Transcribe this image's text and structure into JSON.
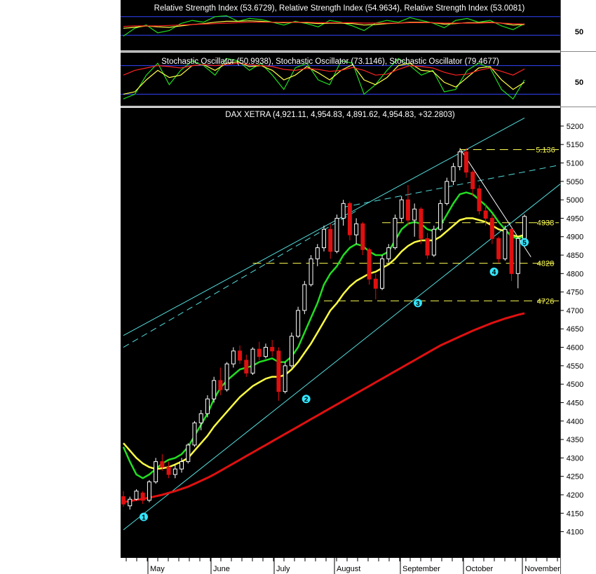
{
  "colors": {
    "background": "#000000",
    "candle_up": "#ffffff",
    "candle_down": "#e01010",
    "ma_fast": "#22dd22",
    "ma_mid": "#ffff44",
    "ma_slow": "#e01010",
    "trendline": "#55dddd",
    "level_line": "#ffff55",
    "marker": "#33e6ff",
    "guide_blue": "#3344ff",
    "guide_red": "#ff2222"
  },
  "rsi_panel": {
    "title": "Relative Strength Index (53.6729), Relative Strength Index (54.9634), Relative Strength Index (53.0081)",
    "axis_label": "50",
    "range": [
      0,
      100
    ],
    "guides": [
      70,
      30
    ],
    "series": [
      {
        "color": "#22dd22",
        "values": [
          28,
          45,
          52,
          35,
          40,
          55,
          62,
          58,
          70,
          72,
          60,
          66,
          64,
          58,
          52,
          60,
          55,
          48,
          62,
          58,
          50,
          40,
          56,
          62,
          58,
          68,
          62,
          56,
          46,
          62,
          66,
          58,
          62,
          50,
          42,
          55
        ]
      },
      {
        "color": "#ffff44",
        "values": [
          45,
          47,
          50,
          48,
          47,
          50,
          53,
          55,
          58,
          60,
          60,
          61,
          60,
          58,
          57,
          58,
          57,
          55,
          56,
          56,
          55,
          52,
          53,
          55,
          56,
          58,
          58,
          57,
          54,
          55,
          57,
          57,
          58,
          56,
          52,
          53
        ]
      },
      {
        "color": "#ff2222",
        "values": [
          49,
          50,
          50,
          50,
          51,
          52,
          53,
          54,
          55,
          56,
          57,
          58,
          58,
          58,
          58,
          58,
          58,
          57,
          57,
          57,
          57,
          56,
          56,
          56,
          56,
          57,
          57,
          57,
          56,
          56,
          56,
          56,
          57,
          56,
          55,
          54
        ]
      }
    ]
  },
  "stoch_panel": {
    "title": "Stochastic Oscillator (50.9938), Stochastic Oscillator (73.1146), Stochastic Oscillator (79.4677)",
    "axis_label": "50",
    "range": [
      0,
      100
    ],
    "guides": [
      80,
      20
    ],
    "series": [
      {
        "color": "#22dd22",
        "values": [
          10,
          20,
          60,
          85,
          40,
          70,
          90,
          80,
          60,
          95,
          90,
          70,
          85,
          60,
          30,
          75,
          85,
          50,
          40,
          90,
          85,
          20,
          40,
          70,
          95,
          80,
          60,
          70,
          25,
          30,
          70,
          85,
          75,
          30,
          10,
          50
        ]
      },
      {
        "color": "#ffff44",
        "values": [
          20,
          25,
          50,
          70,
          55,
          60,
          80,
          82,
          70,
          85,
          88,
          78,
          80,
          70,
          50,
          60,
          78,
          65,
          50,
          70,
          82,
          50,
          40,
          55,
          80,
          85,
          70,
          68,
          45,
          35,
          55,
          75,
          78,
          50,
          30,
          45
        ]
      },
      {
        "color": "#ff2222",
        "values": [
          60,
          70,
          75,
          80,
          78,
          75,
          80,
          82,
          80,
          82,
          85,
          82,
          80,
          78,
          72,
          70,
          74,
          72,
          68,
          70,
          76,
          70,
          60,
          62,
          72,
          80,
          78,
          75,
          66,
          60,
          62,
          70,
          75,
          68,
          60,
          73
        ]
      }
    ]
  },
  "chart_data": {
    "type": "candlestick",
    "title": "DAX XETRA (4,921.11, 4,954.83, 4,891.62, 4,954.83, +32.2803)",
    "x_labels": [
      "May",
      "June",
      "July",
      "August",
      "September",
      "October",
      "November"
    ],
    "y_ticks": [
      4100,
      4150,
      4200,
      4250,
      4300,
      4350,
      4400,
      4450,
      4500,
      4550,
      4600,
      4650,
      4700,
      4750,
      4800,
      4850,
      4900,
      4950,
      5000,
      5050,
      5100,
      5150,
      5200
    ],
    "ylim": [
      4065,
      5215
    ],
    "candles": [
      {
        "o": 4195,
        "h": 4210,
        "l": 4168,
        "c": 4175
      },
      {
        "o": 4170,
        "h": 4195,
        "l": 4160,
        "c": 4188
      },
      {
        "o": 4188,
        "h": 4215,
        "l": 4185,
        "c": 4210
      },
      {
        "o": 4205,
        "h": 4210,
        "l": 4175,
        "c": 4185
      },
      {
        "o": 4185,
        "h": 4240,
        "l": 4180,
        "c": 4235
      },
      {
        "o": 4235,
        "h": 4300,
        "l": 4230,
        "c": 4290
      },
      {
        "o": 4290,
        "h": 4310,
        "l": 4265,
        "c": 4275
      },
      {
        "o": 4275,
        "h": 4290,
        "l": 4245,
        "c": 4255
      },
      {
        "o": 4255,
        "h": 4280,
        "l": 4245,
        "c": 4270
      },
      {
        "o": 4270,
        "h": 4300,
        "l": 4260,
        "c": 4290
      },
      {
        "o": 4290,
        "h": 4340,
        "l": 4285,
        "c": 4335
      },
      {
        "o": 4335,
        "h": 4400,
        "l": 4330,
        "c": 4395
      },
      {
        "o": 4395,
        "h": 4430,
        "l": 4375,
        "c": 4420
      },
      {
        "o": 4420,
        "h": 4470,
        "l": 4410,
        "c": 4460
      },
      {
        "o": 4460,
        "h": 4520,
        "l": 4450,
        "c": 4510
      },
      {
        "o": 4510,
        "h": 4545,
        "l": 4470,
        "c": 4485
      },
      {
        "o": 4485,
        "h": 4560,
        "l": 4480,
        "c": 4555
      },
      {
        "o": 4555,
        "h": 4600,
        "l": 4545,
        "c": 4590
      },
      {
        "o": 4590,
        "h": 4605,
        "l": 4555,
        "c": 4565
      },
      {
        "o": 4565,
        "h": 4580,
        "l": 4520,
        "c": 4530
      },
      {
        "o": 4530,
        "h": 4600,
        "l": 4525,
        "c": 4595
      },
      {
        "o": 4595,
        "h": 4615,
        "l": 4565,
        "c": 4575
      },
      {
        "o": 4575,
        "h": 4610,
        "l": 4570,
        "c": 4600
      },
      {
        "o": 4600,
        "h": 4620,
        "l": 4575,
        "c": 4590
      },
      {
        "o": 4590,
        "h": 4600,
        "l": 4455,
        "c": 4480
      },
      {
        "o": 4480,
        "h": 4560,
        "l": 4475,
        "c": 4550
      },
      {
        "o": 4550,
        "h": 4640,
        "l": 4545,
        "c": 4630
      },
      {
        "o": 4630,
        "h": 4710,
        "l": 4625,
        "c": 4700
      },
      {
        "o": 4700,
        "h": 4780,
        "l": 4690,
        "c": 4770
      },
      {
        "o": 4770,
        "h": 4850,
        "l": 4765,
        "c": 4840
      },
      {
        "o": 4840,
        "h": 4880,
        "l": 4820,
        "c": 4870
      },
      {
        "o": 4870,
        "h": 4930,
        "l": 4860,
        "c": 4920
      },
      {
        "o": 4920,
        "h": 4935,
        "l": 4840,
        "c": 4860
      },
      {
        "o": 4860,
        "h": 4960,
        "l": 4855,
        "c": 4950
      },
      {
        "o": 4950,
        "h": 5000,
        "l": 4930,
        "c": 4990
      },
      {
        "o": 4990,
        "h": 4995,
        "l": 4890,
        "c": 4905
      },
      {
        "o": 4905,
        "h": 4950,
        "l": 4880,
        "c": 4935
      },
      {
        "o": 4935,
        "h": 4940,
        "l": 4850,
        "c": 4865
      },
      {
        "o": 4865,
        "h": 4870,
        "l": 4770,
        "c": 4785
      },
      {
        "o": 4785,
        "h": 4800,
        "l": 4730,
        "c": 4760
      },
      {
        "o": 4760,
        "h": 4850,
        "l": 4755,
        "c": 4840
      },
      {
        "o": 4840,
        "h": 4880,
        "l": 4830,
        "c": 4870
      },
      {
        "o": 4870,
        "h": 4960,
        "l": 4865,
        "c": 4950
      },
      {
        "o": 4950,
        "h": 5010,
        "l": 4940,
        "c": 5000
      },
      {
        "o": 5000,
        "h": 5040,
        "l": 4930,
        "c": 4945
      },
      {
        "o": 4945,
        "h": 4990,
        "l": 4900,
        "c": 4975
      },
      {
        "o": 4975,
        "h": 4980,
        "l": 4880,
        "c": 4895
      },
      {
        "o": 4895,
        "h": 4910,
        "l": 4840,
        "c": 4850
      },
      {
        "o": 4850,
        "h": 4930,
        "l": 4845,
        "c": 4920
      },
      {
        "o": 4920,
        "h": 5000,
        "l": 4915,
        "c": 4990
      },
      {
        "o": 4990,
        "h": 5060,
        "l": 4985,
        "c": 5050
      },
      {
        "o": 5050,
        "h": 5100,
        "l": 5040,
        "c": 5090
      },
      {
        "o": 5090,
        "h": 5136,
        "l": 5080,
        "c": 5130
      },
      {
        "o": 5130,
        "h": 5140,
        "l": 5060,
        "c": 5075
      },
      {
        "o": 5075,
        "h": 5080,
        "l": 5010,
        "c": 5030
      },
      {
        "o": 5030,
        "h": 5040,
        "l": 4960,
        "c": 4970
      },
      {
        "o": 4970,
        "h": 4990,
        "l": 4930,
        "c": 4950
      },
      {
        "o": 4950,
        "h": 4960,
        "l": 4880,
        "c": 4895
      },
      {
        "o": 4895,
        "h": 4900,
        "l": 4830,
        "c": 4840
      },
      {
        "o": 4840,
        "h": 4930,
        "l": 4835,
        "c": 4920
      },
      {
        "o": 4920,
        "h": 4925,
        "l": 4780,
        "c": 4800
      },
      {
        "o": 4800,
        "h": 4900,
        "l": 4760,
        "c": 4895
      },
      {
        "o": 4895,
        "h": 4960,
        "l": 4890,
        "c": 4955
      }
    ],
    "ma_fast": [
      4330,
      4290,
      4255,
      4245,
      4255,
      4270,
      4285,
      4295,
      4300,
      4310,
      4330,
      4360,
      4390,
      4420,
      4460,
      4490,
      4510,
      4525,
      4540,
      4545,
      4550,
      4560,
      4565,
      4570,
      4560,
      4560,
      4575,
      4600,
      4640,
      4680,
      4720,
      4770,
      4800,
      4820,
      4850,
      4870,
      4880,
      4875,
      4860,
      4850,
      4850,
      4860,
      4890,
      4920,
      4935,
      4940,
      4935,
      4920,
      4915,
      4930,
      4960,
      4990,
      5015,
      5020,
      5015,
      5000,
      4985,
      4965,
      4940,
      4920,
      4900,
      4895,
      4900
    ],
    "ma_mid": [
      4340,
      4320,
      4300,
      4285,
      4275,
      4270,
      4272,
      4275,
      4282,
      4290,
      4300,
      4320,
      4340,
      4360,
      4385,
      4405,
      4425,
      4445,
      4465,
      4480,
      4495,
      4505,
      4515,
      4520,
      4520,
      4525,
      4540,
      4560,
      4585,
      4610,
      4640,
      4670,
      4700,
      4720,
      4745,
      4765,
      4780,
      4790,
      4800,
      4805,
      4815,
      4825,
      4840,
      4860,
      4875,
      4885,
      4890,
      4890,
      4890,
      4900,
      4915,
      4930,
      4945,
      4950,
      4950,
      4945,
      4940,
      4930,
      4920,
      4915,
      4905,
      4900,
      4905
    ],
    "ma_slow": [
      4180,
      4183,
      4186,
      4189,
      4192,
      4196,
      4200,
      4205,
      4210,
      4216,
      4222,
      4230,
      4238,
      4246,
      4255,
      4265,
      4275,
      4285,
      4295,
      4305,
      4315,
      4325,
      4335,
      4345,
      4355,
      4365,
      4375,
      4385,
      4395,
      4405,
      4415,
      4425,
      4435,
      4445,
      4455,
      4465,
      4475,
      4485,
      4495,
      4505,
      4515,
      4525,
      4535,
      4545,
      4555,
      4565,
      4575,
      4585,
      4595,
      4605,
      4613,
      4621,
      4629,
      4637,
      4645,
      4652,
      4659,
      4666,
      4672,
      4678,
      4683,
      4688,
      4692
    ],
    "level_labels": [
      {
        "value": 5136,
        "label": "5.136"
      },
      {
        "value": 4938,
        "label": "4938"
      },
      {
        "value": 4828,
        "label": "4828"
      },
      {
        "value": 4726,
        "label": "4726"
      }
    ],
    "markers": [
      "1",
      "2",
      "3",
      "4",
      "5"
    ]
  }
}
